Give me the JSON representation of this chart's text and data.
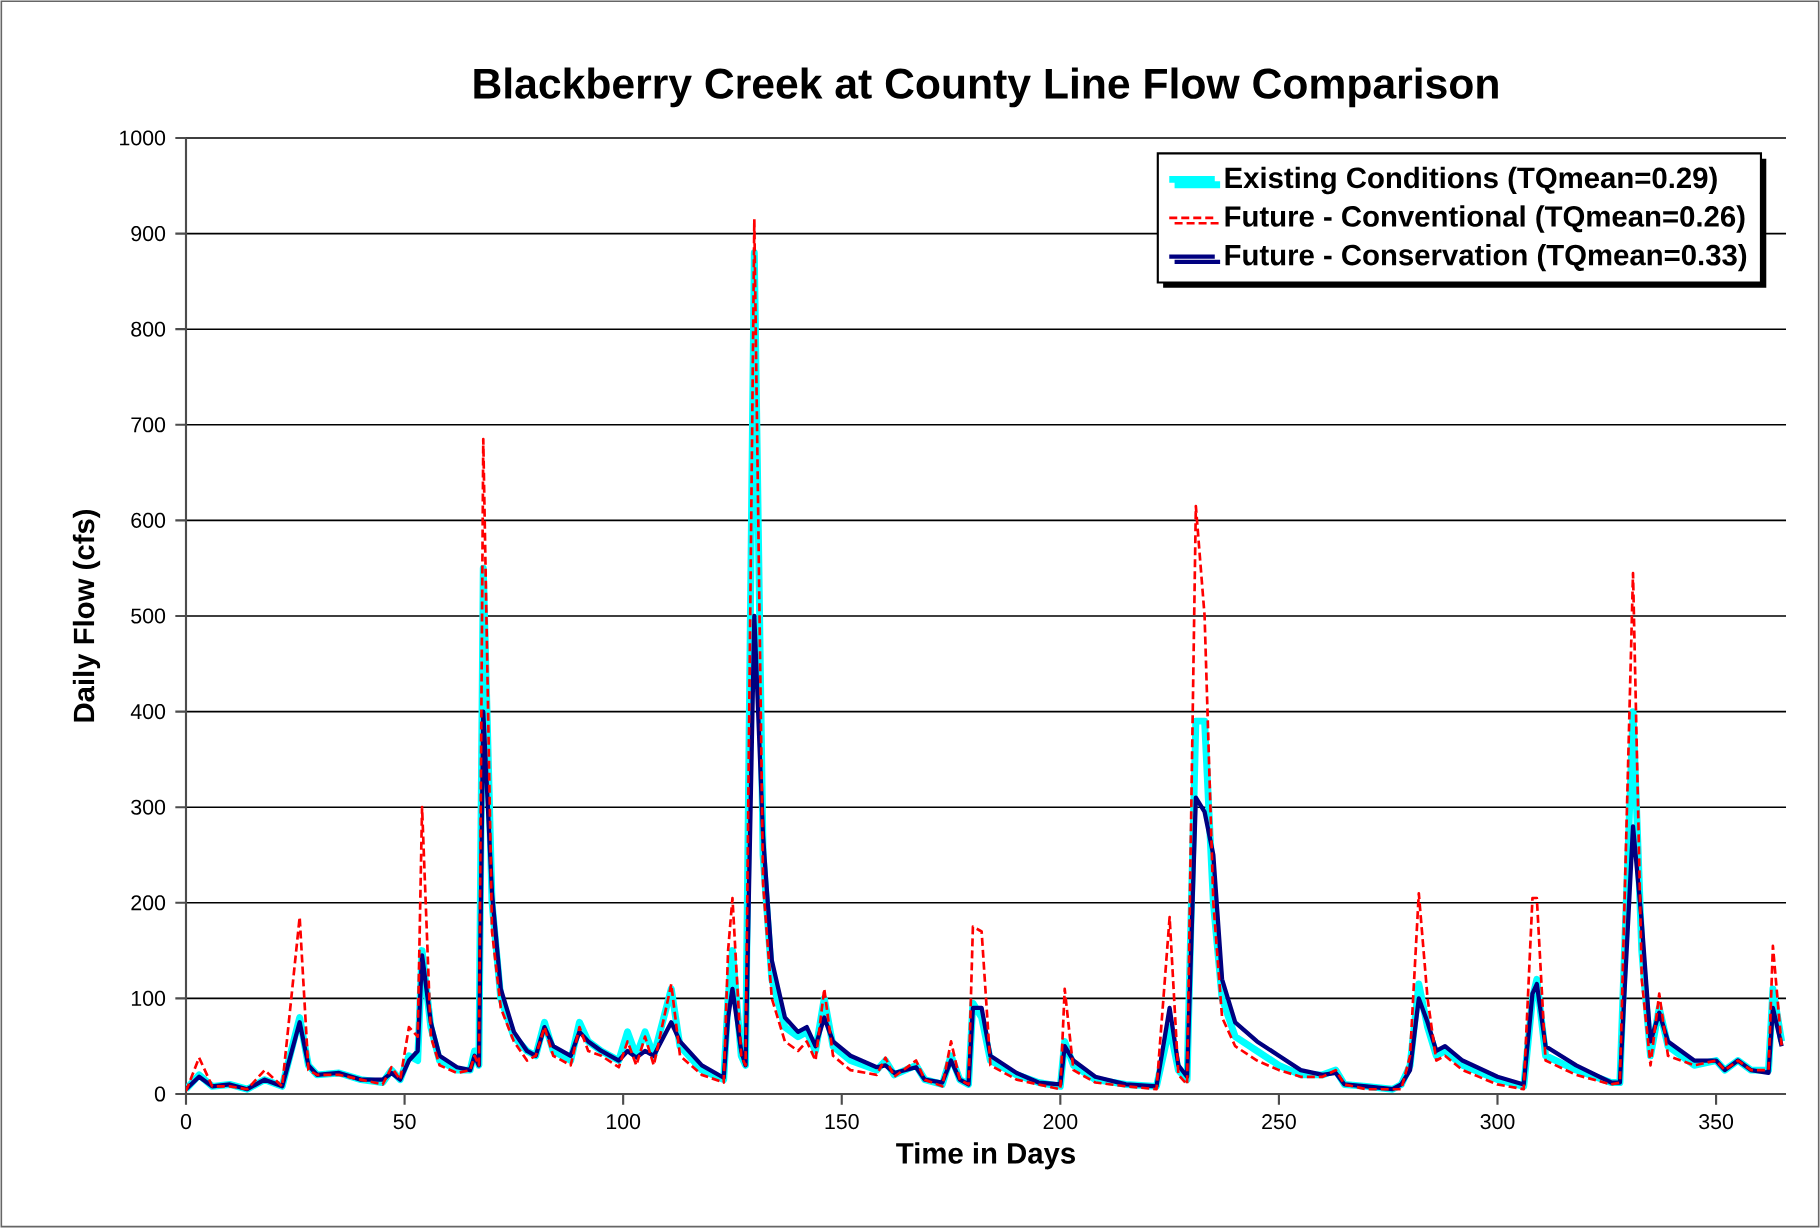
{
  "chart_data": {
    "type": "line",
    "title": "Blackberry Creek at County Line Flow Comparison",
    "xlabel": "Time in Days",
    "ylabel": "Daily Flow (cfs)",
    "x": [
      0,
      3,
      6,
      10,
      14,
      18,
      22,
      26,
      28,
      30,
      35,
      40,
      45,
      47,
      49,
      51,
      53,
      54,
      56,
      58,
      62,
      65,
      66,
      67,
      68,
      70,
      72,
      75,
      78,
      80,
      82,
      84,
      88,
      90,
      92,
      95,
      99,
      101,
      103,
      105,
      107,
      111,
      113,
      118,
      123,
      124,
      125,
      127,
      128,
      130,
      132,
      134,
      137,
      140,
      142,
      144,
      146,
      148,
      152,
      158,
      160,
      162,
      167,
      169,
      173,
      175,
      177,
      179,
      180,
      182,
      184,
      190,
      195,
      200,
      201,
      203,
      208,
      215,
      222,
      225,
      227,
      229,
      231,
      233,
      235,
      237,
      240,
      245,
      250,
      255,
      260,
      263,
      265,
      270,
      276,
      278,
      280,
      282,
      284,
      286,
      288,
      292,
      300,
      306,
      308,
      309,
      311,
      318,
      326,
      328,
      331,
      333,
      335,
      337,
      339,
      345,
      350,
      352,
      355,
      358,
      362,
      363,
      365
    ],
    "series": [
      {
        "name": "Existing Conditions (TQmean=0.29)",
        "color": "#00ffff",
        "line_style": "solid",
        "values": [
          5,
          20,
          8,
          10,
          5,
          15,
          8,
          80,
          30,
          20,
          22,
          15,
          12,
          25,
          15,
          40,
          35,
          150,
          70,
          35,
          25,
          25,
          45,
          30,
          550,
          200,
          100,
          60,
          45,
          40,
          75,
          45,
          35,
          75,
          55,
          45,
          35,
          65,
          40,
          65,
          40,
          110,
          50,
          25,
          15,
          100,
          150,
          40,
          30,
          880,
          250,
          120,
          70,
          60,
          65,
          45,
          100,
          50,
          35,
          25,
          35,
          20,
          30,
          15,
          10,
          40,
          15,
          10,
          95,
          80,
          35,
          20,
          12,
          8,
          55,
          30,
          15,
          10,
          8,
          70,
          25,
          15,
          390,
          390,
          200,
          100,
          60,
          45,
          30,
          20,
          20,
          25,
          10,
          8,
          5,
          10,
          30,
          115,
          70,
          40,
          45,
          30,
          15,
          8,
          100,
          120,
          40,
          25,
          12,
          12,
          400,
          150,
          40,
          90,
          50,
          30,
          35,
          25,
          35,
          25,
          25,
          110,
          55
        ]
      },
      {
        "name": "Future - Conventional (TQmean=0.26)",
        "color": "#ff0000",
        "line_style": "dashed",
        "values": [
          3,
          38,
          8,
          8,
          5,
          25,
          8,
          185,
          25,
          20,
          20,
          15,
          10,
          28,
          15,
          70,
          60,
          300,
          60,
          30,
          22,
          25,
          40,
          30,
          685,
          170,
          90,
          55,
          35,
          40,
          70,
          40,
          30,
          70,
          45,
          40,
          28,
          55,
          30,
          60,
          30,
          115,
          40,
          20,
          12,
          150,
          205,
          40,
          30,
          915,
          220,
          100,
          55,
          45,
          55,
          35,
          110,
          40,
          25,
          20,
          38,
          18,
          35,
          15,
          8,
          55,
          15,
          10,
          175,
          170,
          30,
          15,
          10,
          5,
          110,
          25,
          12,
          8,
          5,
          185,
          20,
          10,
          615,
          500,
          200,
          80,
          50,
          35,
          25,
          18,
          18,
          25,
          10,
          5,
          5,
          5,
          40,
          210,
          100,
          35,
          40,
          25,
          10,
          5,
          205,
          205,
          35,
          20,
          10,
          12,
          545,
          120,
          30,
          105,
          40,
          30,
          35,
          25,
          35,
          25,
          25,
          155,
          50
        ]
      },
      {
        "name": "Future - Conservation (TQmean=0.33)",
        "color": "#000080",
        "line_style": "solid",
        "values": [
          5,
          18,
          8,
          10,
          5,
          15,
          8,
          75,
          30,
          20,
          22,
          15,
          15,
          22,
          15,
          35,
          45,
          145,
          75,
          40,
          28,
          25,
          40,
          30,
          400,
          210,
          110,
          65,
          45,
          40,
          70,
          50,
          40,
          65,
          55,
          45,
          35,
          45,
          38,
          45,
          40,
          75,
          55,
          30,
          17,
          80,
          110,
          45,
          30,
          500,
          270,
          140,
          80,
          65,
          70,
          50,
          80,
          55,
          40,
          28,
          30,
          22,
          28,
          15,
          12,
          35,
          15,
          10,
          90,
          90,
          40,
          22,
          12,
          10,
          50,
          35,
          18,
          10,
          8,
          90,
          30,
          18,
          310,
          295,
          250,
          120,
          75,
          55,
          40,
          25,
          20,
          22,
          10,
          8,
          5,
          10,
          25,
          100,
          75,
          45,
          50,
          35,
          18,
          10,
          105,
          115,
          50,
          30,
          12,
          12,
          280,
          180,
          55,
          85,
          55,
          35,
          35,
          25,
          35,
          25,
          22,
          90,
          50
        ]
      }
    ],
    "xlim": [
      0,
      366
    ],
    "ylim": [
      0,
      1000
    ],
    "xticks": [
      0,
      50,
      100,
      150,
      200,
      250,
      300,
      350
    ],
    "yticks": [
      0,
      100,
      200,
      300,
      400,
      500,
      600,
      700,
      800,
      900,
      1000
    ],
    "grid": "y",
    "legend": "top right",
    "marker": "none"
  }
}
